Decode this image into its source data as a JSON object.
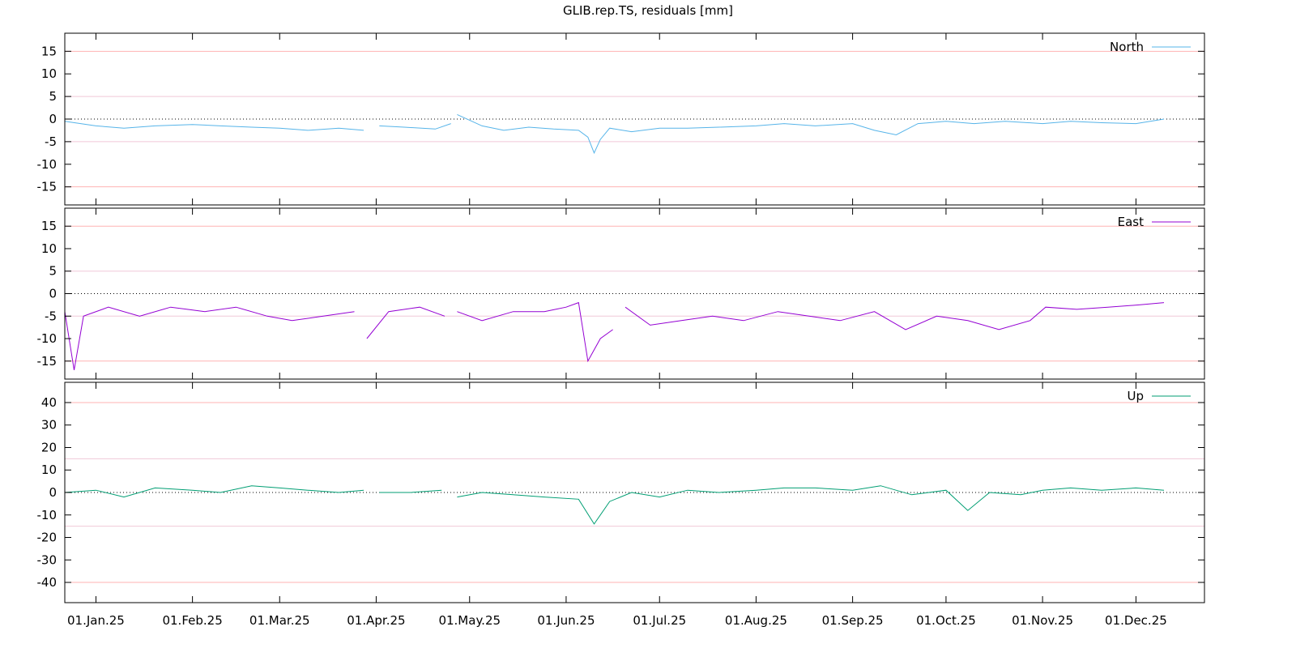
{
  "title": "GLIB.rep.TS, residuals [mm]",
  "chart_data": {
    "type": "line",
    "title": "GLIB.rep.TS, residuals [mm]",
    "x_axis": {
      "type": "date",
      "min": "2024-12-22",
      "max": "2025-12-23",
      "ticks": [
        "2025-01-01",
        "2025-02-01",
        "2025-03-01",
        "2025-04-01",
        "2025-05-01",
        "2025-06-01",
        "2025-07-01",
        "2025-08-01",
        "2025-09-01",
        "2025-10-01",
        "2025-11-01",
        "2025-12-01"
      ],
      "tick_labels": [
        "01.Jan.25",
        "01.Feb.25",
        "01.Mar.25",
        "01.Apr.25",
        "01.May.25",
        "01.Jun.25",
        "01.Jul.25",
        "01.Aug.25",
        "01.Sep.25",
        "01.Oct.25",
        "01.Nov.25",
        "01.Dec.25"
      ]
    },
    "panels": [
      {
        "name": "North",
        "color": "#56b4e9",
        "ylim": [
          -19,
          19
        ],
        "yticks": [
          -15,
          -10,
          -5,
          0,
          5,
          10,
          15
        ],
        "ytick_labels": [
          "-15",
          "-10",
          "-5",
          "0",
          "5",
          "10",
          "15"
        ],
        "red_gridlines": [
          -15,
          15
        ],
        "pink_gridlines": [
          -5,
          5
        ],
        "zero_line": "dotted",
        "legend": "top-right",
        "series": [
          {
            "name": "North",
            "points": [
              [
                "2024-12-22",
                -0.5
              ],
              [
                "2025-01-01",
                -1.5
              ],
              [
                "2025-01-10",
                -2.0
              ],
              [
                "2025-01-20",
                -1.5
              ],
              [
                "2025-02-01",
                -1.2
              ],
              [
                "2025-02-10",
                -1.5
              ],
              [
                "2025-02-20",
                -1.8
              ],
              [
                "2025-03-01",
                -2.0
              ],
              [
                "2025-03-10",
                -2.5
              ],
              [
                "2025-03-20",
                -2.0
              ],
              [
                "2025-03-28",
                -2.5
              ],
              null,
              [
                "2025-04-02",
                -1.5
              ],
              [
                "2025-04-10",
                -1.8
              ],
              [
                "2025-04-20",
                -2.2
              ],
              [
                "2025-04-25",
                -1.0
              ],
              null,
              [
                "2025-04-27",
                1.0
              ],
              [
                "2025-05-05",
                -1.5
              ],
              [
                "2025-05-12",
                -2.5
              ],
              [
                "2025-05-20",
                -1.8
              ],
              [
                "2025-05-28",
                -2.2
              ],
              [
                "2025-06-05",
                -2.5
              ],
              [
                "2025-06-08",
                -4.0
              ],
              [
                "2025-06-10",
                -7.5
              ],
              [
                "2025-06-12",
                -4.5
              ],
              [
                "2025-06-15",
                -2.0
              ],
              [
                "2025-06-22",
                -2.8
              ],
              [
                "2025-07-01",
                -2.0
              ],
              [
                "2025-07-10",
                -2.0
              ],
              [
                "2025-07-20",
                -1.8
              ],
              [
                "2025-08-01",
                -1.5
              ],
              [
                "2025-08-10",
                -1.0
              ],
              [
                "2025-08-20",
                -1.5
              ],
              [
                "2025-09-01",
                -1.0
              ],
              [
                "2025-09-08",
                -2.5
              ],
              [
                "2025-09-15",
                -3.5
              ],
              [
                "2025-09-22",
                -1.0
              ],
              [
                "2025-10-01",
                -0.5
              ],
              [
                "2025-10-10",
                -1.0
              ],
              [
                "2025-10-20",
                -0.5
              ],
              [
                "2025-11-01",
                -1.0
              ],
              [
                "2025-11-10",
                -0.5
              ],
              [
                "2025-11-20",
                -0.8
              ],
              [
                "2025-12-01",
                -1.0
              ],
              [
                "2025-12-10",
                0.0
              ]
            ]
          }
        ]
      },
      {
        "name": "East",
        "color": "#9400d3",
        "ylim": [
          -19,
          19
        ],
        "yticks": [
          -15,
          -10,
          -5,
          0,
          5,
          10,
          15
        ],
        "ytick_labels": [
          "-15",
          "-10",
          "-5",
          "0",
          "5",
          "10",
          "15"
        ],
        "red_gridlines": [
          -15,
          15
        ],
        "pink_gridlines": [
          -5,
          5
        ],
        "zero_line": "dotted",
        "legend": "top-right",
        "series": [
          {
            "name": "East",
            "points": [
              [
                "2024-12-22",
                -4
              ],
              [
                "2024-12-25",
                -17
              ],
              [
                "2024-12-28",
                -5
              ],
              [
                "2025-01-05",
                -3
              ],
              [
                "2025-01-15",
                -5
              ],
              [
                "2025-01-25",
                -3
              ],
              [
                "2025-02-05",
                -4
              ],
              [
                "2025-02-15",
                -3
              ],
              [
                "2025-02-25",
                -5
              ],
              [
                "2025-03-05",
                -6
              ],
              [
                "2025-03-15",
                -5
              ],
              [
                "2025-03-25",
                -4
              ],
              null,
              [
                "2025-03-29",
                -10
              ],
              [
                "2025-04-05",
                -4
              ],
              [
                "2025-04-15",
                -3
              ],
              [
                "2025-04-23",
                -5
              ],
              null,
              [
                "2025-04-27",
                -4
              ],
              [
                "2025-05-05",
                -6
              ],
              [
                "2025-05-15",
                -4
              ],
              [
                "2025-05-25",
                -4
              ],
              [
                "2025-06-01",
                -3
              ],
              [
                "2025-06-05",
                -2
              ],
              [
                "2025-06-08",
                -15
              ],
              [
                "2025-06-12",
                -10
              ],
              [
                "2025-06-16",
                -8
              ],
              null,
              [
                "2025-06-20",
                -3
              ],
              [
                "2025-06-28",
                -7
              ],
              [
                "2025-07-08",
                -6
              ],
              [
                "2025-07-18",
                -5
              ],
              [
                "2025-07-28",
                -6
              ],
              [
                "2025-08-08",
                -4
              ],
              [
                "2025-08-18",
                -5
              ],
              [
                "2025-08-28",
                -6
              ],
              [
                "2025-09-08",
                -4
              ],
              [
                "2025-09-18",
                -8
              ],
              [
                "2025-09-28",
                -5
              ],
              [
                "2025-10-08",
                -6
              ],
              [
                "2025-10-18",
                -8
              ],
              [
                "2025-10-28",
                -6
              ],
              [
                "2025-11-02",
                -3
              ],
              [
                "2025-11-12",
                -3.5
              ],
              [
                "2025-11-22",
                -3
              ],
              [
                "2025-12-02",
                -2.5
              ],
              [
                "2025-12-10",
                -2
              ]
            ]
          }
        ]
      },
      {
        "name": "Up",
        "color": "#009e73",
        "ylim": [
          -49,
          49
        ],
        "yticks": [
          -40,
          -30,
          -20,
          -10,
          0,
          10,
          20,
          30,
          40
        ],
        "ytick_labels": [
          "-40",
          "-30",
          "-20",
          "-10",
          "0",
          "10",
          "20",
          "30",
          "40"
        ],
        "red_gridlines": [
          -40,
          40
        ],
        "pink_gridlines": [
          -15,
          15
        ],
        "zero_line": "dotted",
        "legend": "top-right",
        "series": [
          {
            "name": "Up",
            "points": [
              [
                "2024-12-22",
                0
              ],
              [
                "2025-01-01",
                1
              ],
              [
                "2025-01-10",
                -2
              ],
              [
                "2025-01-20",
                2
              ],
              [
                "2025-02-01",
                1
              ],
              [
                "2025-02-10",
                0
              ],
              [
                "2025-02-20",
                3
              ],
              [
                "2025-03-01",
                2
              ],
              [
                "2025-03-10",
                1
              ],
              [
                "2025-03-20",
                0
              ],
              [
                "2025-03-28",
                1
              ],
              null,
              [
                "2025-04-02",
                0
              ],
              [
                "2025-04-12",
                0
              ],
              [
                "2025-04-22",
                1
              ],
              null,
              [
                "2025-04-27",
                -2
              ],
              [
                "2025-05-05",
                0
              ],
              [
                "2025-05-15",
                -1
              ],
              [
                "2025-05-25",
                -2
              ],
              [
                "2025-06-05",
                -3
              ],
              [
                "2025-06-10",
                -14
              ],
              [
                "2025-06-15",
                -4
              ],
              [
                "2025-06-22",
                0
              ],
              [
                "2025-07-01",
                -2
              ],
              [
                "2025-07-10",
                1
              ],
              [
                "2025-07-20",
                0
              ],
              [
                "2025-08-01",
                1
              ],
              [
                "2025-08-10",
                2
              ],
              [
                "2025-08-20",
                2
              ],
              [
                "2025-09-01",
                1
              ],
              [
                "2025-09-10",
                3
              ],
              [
                "2025-09-20",
                -1
              ],
              [
                "2025-10-01",
                1
              ],
              [
                "2025-10-08",
                -8
              ],
              [
                "2025-10-15",
                0
              ],
              [
                "2025-10-25",
                -1
              ],
              [
                "2025-11-01",
                1
              ],
              [
                "2025-11-10",
                2
              ],
              [
                "2025-11-20",
                1
              ],
              [
                "2025-12-01",
                2
              ],
              [
                "2025-12-10",
                1
              ]
            ]
          }
        ]
      }
    ]
  }
}
